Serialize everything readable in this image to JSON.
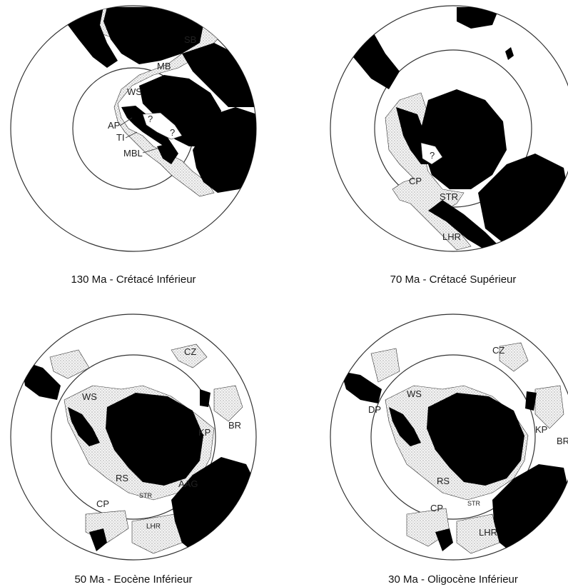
{
  "panels": [
    {
      "caption": "130 Ma - Crétacé Inférieur",
      "labels": [
        "SB",
        "MB",
        "WS",
        "AP",
        "TI",
        "MBL",
        "?",
        "?"
      ]
    },
    {
      "caption": "70 Ma - Crétacé Supérieur",
      "labels": [
        "?",
        "CP",
        "STR",
        "LHR"
      ]
    },
    {
      "caption": "50 Ma - Eocène Inférieur",
      "labels": [
        "CZ",
        "WS",
        "KP",
        "BR",
        "RS",
        "AAG",
        "STR",
        "CP",
        "LHR"
      ]
    },
    {
      "caption": "30 Ma - Oligocène Inférieur",
      "labels": [
        "CZ",
        "WS",
        "DP",
        "KP",
        "BR",
        "RS",
        "STR",
        "CP",
        "LHR"
      ]
    }
  ],
  "colors": {
    "land": "#000000",
    "shelf_dots": "#555555",
    "shelf_bg": "#f2f2f2",
    "circle": "#333333"
  }
}
